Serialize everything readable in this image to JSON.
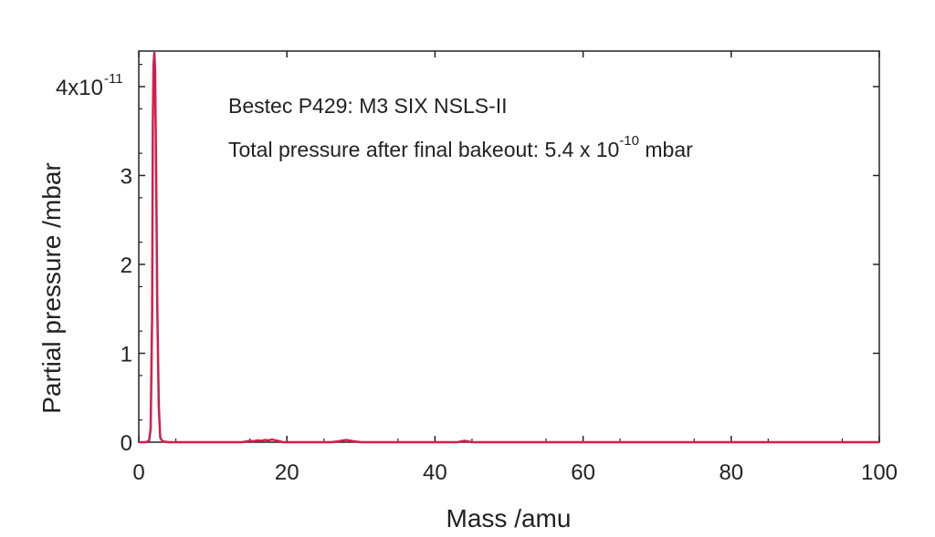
{
  "chart_data": {
    "type": "line",
    "xlabel": "Mass /amu",
    "ylabel": "Partial pressure /mbar",
    "xlim": [
      0,
      100
    ],
    "ylim": [
      0,
      4.4e-11
    ],
    "x_ticks": [
      0,
      20,
      40,
      60,
      80,
      100
    ],
    "x_tick_labels": [
      "0",
      "20",
      "40",
      "60",
      "80",
      "100"
    ],
    "y_ticks": [
      0,
      1e-11,
      2e-11,
      3e-11,
      4e-11
    ],
    "y_tick_labels": [
      "0",
      "1",
      "2",
      "3",
      "4x10"
    ],
    "y_tick_exponent": "-11",
    "grid": false,
    "legend": false,
    "annotations": {
      "line1": "Bestec P429: M3 SIX NSLS-II",
      "line2_prefix": "Total pressure after final bakeout: 5.4 x 10",
      "line2_exponent": "-10",
      "line2_suffix": " mbar"
    },
    "series": [
      {
        "color": "#d81b4a",
        "x": [
          0,
          1,
          1.4,
          1.6,
          1.8,
          1.9,
          2.0,
          2.1,
          2.2,
          2.35,
          2.5,
          2.7,
          2.9,
          3.2,
          4,
          10,
          14,
          15,
          15.5,
          16,
          16.5,
          17,
          17.5,
          18,
          18.5,
          19,
          19.5,
          20,
          26,
          27,
          28,
          29,
          30,
          35,
          42,
          43,
          44,
          45,
          46,
          60,
          80,
          100
        ],
        "y": [
          0,
          0,
          2e-13,
          1.5e-12,
          1.4e-11,
          3.6e-11,
          4.25e-11,
          4.38e-11,
          4.2e-11,
          3e-11,
          1.5e-11,
          4e-12,
          5e-13,
          1e-13,
          0,
          0,
          0,
          1.5e-13,
          1e-13,
          2e-13,
          1.5e-13,
          2.5e-13,
          2e-13,
          3e-13,
          2e-13,
          1e-13,
          0,
          0,
          0,
          1e-13,
          2.5e-13,
          1e-13,
          0,
          0,
          0,
          0,
          1.5e-13,
          0,
          0,
          0,
          0,
          0
        ]
      }
    ]
  }
}
